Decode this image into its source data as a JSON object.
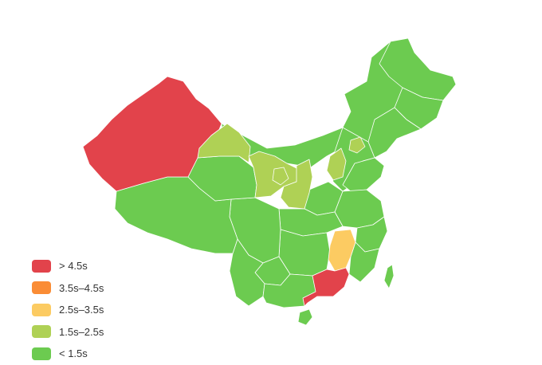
{
  "legend": {
    "items": [
      {
        "label": "> 4.5s",
        "color": "#e2434b"
      },
      {
        "label": "3.5s–4.5s",
        "color": "#fa8c35"
      },
      {
        "label": "2.5s–3.5s",
        "color": "#fccb62"
      },
      {
        "label": "1.5s–2.5s",
        "color": "#afd155"
      },
      {
        "label": "< 1.5s",
        "color": "#6ccb50"
      }
    ]
  },
  "regions": [
    {
      "name": "xinjiang",
      "level": 0
    },
    {
      "name": "guangdong",
      "level": 0
    },
    {
      "name": "jiangxi",
      "level": 2
    },
    {
      "name": "qinghai-north",
      "level": 3
    },
    {
      "name": "gansu",
      "level": 3
    },
    {
      "name": "ningxia",
      "level": 3
    },
    {
      "name": "shaanxi",
      "level": 3
    },
    {
      "name": "shanxi",
      "level": 3
    },
    {
      "name": "beijing-tianjin",
      "level": 3
    },
    {
      "name": "xizang",
      "level": 4
    },
    {
      "name": "qinghai",
      "level": 4
    },
    {
      "name": "neimenggu",
      "level": 4
    },
    {
      "name": "heilongjiang",
      "level": 4
    },
    {
      "name": "jilin",
      "level": 4
    },
    {
      "name": "liaoning",
      "level": 4
    },
    {
      "name": "hebei",
      "level": 4
    },
    {
      "name": "shandong",
      "level": 4
    },
    {
      "name": "henan",
      "level": 4
    },
    {
      "name": "sichuan",
      "level": 4
    },
    {
      "name": "hubei",
      "level": 4
    },
    {
      "name": "jiangsu-anhui",
      "level": 4
    },
    {
      "name": "zhejiang",
      "level": 4
    },
    {
      "name": "yunnan",
      "level": 4
    },
    {
      "name": "guizhou",
      "level": 4
    },
    {
      "name": "hunan",
      "level": 4
    },
    {
      "name": "guangxi",
      "level": 4
    },
    {
      "name": "fujian",
      "level": 4
    },
    {
      "name": "hainan",
      "level": 4
    },
    {
      "name": "taiwan",
      "level": 4
    }
  ]
}
